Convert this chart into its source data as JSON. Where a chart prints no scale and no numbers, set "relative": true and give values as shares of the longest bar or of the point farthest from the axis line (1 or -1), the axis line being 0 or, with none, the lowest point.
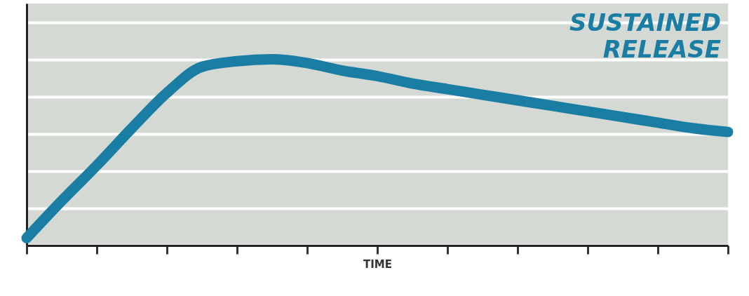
{
  "chart_data": {
    "type": "line",
    "relative": true,
    "xlabel": "TIME",
    "grid": "y",
    "line_style": "solid",
    "categories": [
      null,
      null,
      null,
      null,
      null,
      null,
      null,
      null,
      null,
      null,
      null,
      null,
      null,
      null,
      null,
      null,
      null,
      null,
      null,
      null,
      null
    ],
    "series": [
      {
        "color": "#1a7ea4",
        "values": [
          0.04,
          0.24,
          0.43,
          0.63,
          0.82,
          0.96,
          0.99,
          1,
          0.98,
          0.94,
          0.91,
          0.87,
          0.84,
          0.81,
          0.78,
          0.75,
          0.72,
          0.69,
          0.66,
          0.63,
          0.61
        ]
      }
    ],
    "annotations": [
      "SUSTAINED RELEASE"
    ]
  }
}
